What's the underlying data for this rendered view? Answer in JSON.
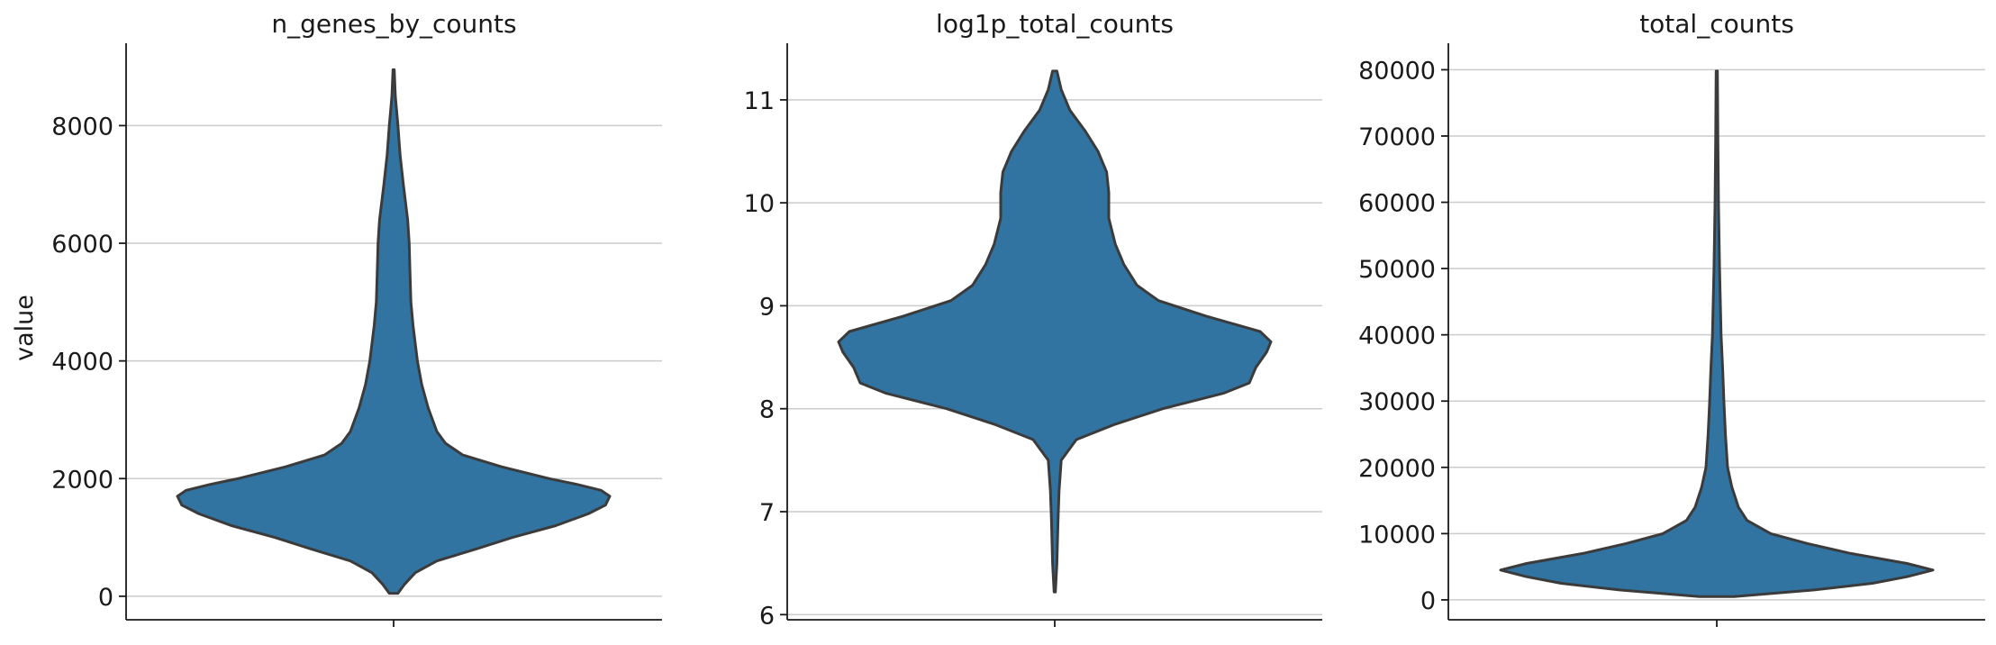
{
  "chart_data": [
    {
      "type": "violin",
      "title": "n_genes_by_counts",
      "ylabel": "value",
      "xlabel": "",
      "ylim": [
        -400,
        9400
      ],
      "yticks": [
        0,
        2000,
        4000,
        6000,
        8000
      ],
      "grid": true,
      "color": "#3274a1",
      "density_profile": [
        {
          "value": 50,
          "halfwidth": 0.02
        },
        {
          "value": 200,
          "halfwidth": 0.05
        },
        {
          "value": 400,
          "halfwidth": 0.1
        },
        {
          "value": 600,
          "halfwidth": 0.2
        },
        {
          "value": 800,
          "halfwidth": 0.38
        },
        {
          "value": 1000,
          "halfwidth": 0.55
        },
        {
          "value": 1200,
          "halfwidth": 0.75
        },
        {
          "value": 1400,
          "halfwidth": 0.9
        },
        {
          "value": 1550,
          "halfwidth": 0.98
        },
        {
          "value": 1700,
          "halfwidth": 1.0
        },
        {
          "value": 1800,
          "halfwidth": 0.96
        },
        {
          "value": 1900,
          "halfwidth": 0.85
        },
        {
          "value": 2000,
          "halfwidth": 0.72
        },
        {
          "value": 2200,
          "halfwidth": 0.5
        },
        {
          "value": 2400,
          "halfwidth": 0.32
        },
        {
          "value": 2600,
          "halfwidth": 0.24
        },
        {
          "value": 2800,
          "halfwidth": 0.2
        },
        {
          "value": 3200,
          "halfwidth": 0.16
        },
        {
          "value": 3600,
          "halfwidth": 0.13
        },
        {
          "value": 4000,
          "halfwidth": 0.11
        },
        {
          "value": 4600,
          "halfwidth": 0.09
        },
        {
          "value": 5000,
          "halfwidth": 0.08
        },
        {
          "value": 5600,
          "halfwidth": 0.075
        },
        {
          "value": 6000,
          "halfwidth": 0.072
        },
        {
          "value": 6400,
          "halfwidth": 0.065
        },
        {
          "value": 7000,
          "halfwidth": 0.045
        },
        {
          "value": 7500,
          "halfwidth": 0.03
        },
        {
          "value": 8000,
          "halfwidth": 0.02
        },
        {
          "value": 8500,
          "halfwidth": 0.008
        },
        {
          "value": 8950,
          "halfwidth": 0.003
        }
      ]
    },
    {
      "type": "violin",
      "title": "log1p_total_counts",
      "ylabel": "",
      "xlabel": "",
      "ylim": [
        5.95,
        11.55
      ],
      "yticks": [
        6,
        7,
        8,
        9,
        10,
        11
      ],
      "grid": true,
      "color": "#3274a1",
      "density_profile": [
        {
          "value": 6.22,
          "halfwidth": 0.003
        },
        {
          "value": 6.5,
          "halfwidth": 0.01
        },
        {
          "value": 6.9,
          "halfwidth": 0.015
        },
        {
          "value": 7.2,
          "halfwidth": 0.02
        },
        {
          "value": 7.5,
          "halfwidth": 0.03
        },
        {
          "value": 7.7,
          "halfwidth": 0.1
        },
        {
          "value": 7.85,
          "halfwidth": 0.28
        },
        {
          "value": 8.0,
          "halfwidth": 0.5
        },
        {
          "value": 8.15,
          "halfwidth": 0.78
        },
        {
          "value": 8.25,
          "halfwidth": 0.9
        },
        {
          "value": 8.4,
          "halfwidth": 0.93
        },
        {
          "value": 8.55,
          "halfwidth": 0.98
        },
        {
          "value": 8.65,
          "halfwidth": 1.0
        },
        {
          "value": 8.75,
          "halfwidth": 0.95
        },
        {
          "value": 8.9,
          "halfwidth": 0.7
        },
        {
          "value": 9.05,
          "halfwidth": 0.48
        },
        {
          "value": 9.2,
          "halfwidth": 0.38
        },
        {
          "value": 9.4,
          "halfwidth": 0.32
        },
        {
          "value": 9.6,
          "halfwidth": 0.28
        },
        {
          "value": 9.85,
          "halfwidth": 0.25
        },
        {
          "value": 10.1,
          "halfwidth": 0.25
        },
        {
          "value": 10.3,
          "halfwidth": 0.24
        },
        {
          "value": 10.5,
          "halfwidth": 0.2
        },
        {
          "value": 10.7,
          "halfwidth": 0.14
        },
        {
          "value": 10.9,
          "halfwidth": 0.07
        },
        {
          "value": 11.1,
          "halfwidth": 0.03
        },
        {
          "value": 11.28,
          "halfwidth": 0.01
        }
      ]
    },
    {
      "type": "violin",
      "title": "total_counts",
      "ylabel": "",
      "xlabel": "",
      "ylim": [
        -3000,
        84000
      ],
      "yticks": [
        0,
        10000,
        20000,
        30000,
        40000,
        50000,
        60000,
        70000,
        80000
      ],
      "grid": true,
      "color": "#3274a1",
      "density_profile": [
        {
          "value": 500,
          "halfwidth": 0.08
        },
        {
          "value": 1500,
          "halfwidth": 0.45
        },
        {
          "value": 2500,
          "halfwidth": 0.72
        },
        {
          "value": 3500,
          "halfwidth": 0.88
        },
        {
          "value": 4500,
          "halfwidth": 1.0
        },
        {
          "value": 5500,
          "halfwidth": 0.88
        },
        {
          "value": 7000,
          "halfwidth": 0.62
        },
        {
          "value": 8500,
          "halfwidth": 0.42
        },
        {
          "value": 10000,
          "halfwidth": 0.25
        },
        {
          "value": 12000,
          "halfwidth": 0.14
        },
        {
          "value": 14000,
          "halfwidth": 0.1
        },
        {
          "value": 17000,
          "halfwidth": 0.07
        },
        {
          "value": 20000,
          "halfwidth": 0.05
        },
        {
          "value": 25000,
          "halfwidth": 0.04
        },
        {
          "value": 30000,
          "halfwidth": 0.033
        },
        {
          "value": 35000,
          "halfwidth": 0.027
        },
        {
          "value": 40000,
          "halfwidth": 0.02
        },
        {
          "value": 50000,
          "halfwidth": 0.013
        },
        {
          "value": 60000,
          "halfwidth": 0.008
        },
        {
          "value": 70000,
          "halfwidth": 0.005
        },
        {
          "value": 79800,
          "halfwidth": 0.003
        }
      ]
    }
  ]
}
